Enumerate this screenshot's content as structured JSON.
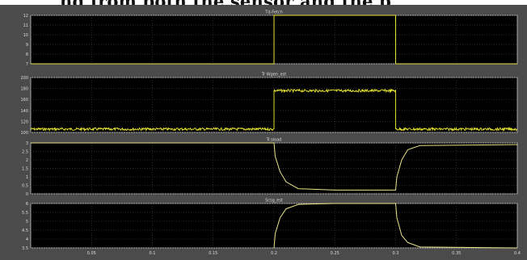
{
  "page_heading": "ng from both the sensor and the p",
  "chart_data": [
    {
      "type": "line",
      "title": "Td-Fetch",
      "xlim": [
        0,
        0.4
      ],
      "ylim": [
        7,
        12
      ],
      "yticks": [
        7,
        8,
        9,
        10,
        11,
        12
      ],
      "grid": true,
      "series": [
        {
          "color": "#e7e23c",
          "x": [
            0,
            0.2,
            0.2,
            0.3,
            0.3,
            0.4
          ],
          "y": [
            7,
            7,
            12,
            12,
            7,
            7
          ]
        }
      ]
    },
    {
      "type": "line",
      "title": "Tr Wgen_est",
      "xlim": [
        0,
        0.4
      ],
      "ylim": [
        100,
        200
      ],
      "yticks": [
        100,
        120,
        140,
        160,
        180,
        200
      ],
      "grid": true,
      "series": [
        {
          "color": "#f2ef30",
          "x": [
            0,
            0.2,
            0.2,
            0.3,
            0.3,
            0.4
          ],
          "y": [
            106,
            106,
            176,
            176,
            106,
            106
          ],
          "noise": true
        }
      ]
    },
    {
      "type": "line",
      "title": "Tr.sload",
      "xlim": [
        0,
        0.4
      ],
      "ylim": [
        0,
        3
      ],
      "yticks": [
        0,
        0.5,
        1,
        1.5,
        2,
        2.5,
        3
      ],
      "grid": true,
      "series": [
        {
          "color": "#e9e58c",
          "x": [
            0,
            0.2,
            0.201,
            0.205,
            0.21,
            0.22,
            0.25,
            0.3,
            0.301,
            0.305,
            0.31,
            0.32,
            0.4
          ],
          "y": [
            3,
            3,
            2.2,
            1.3,
            0.7,
            0.3,
            0.22,
            0.22,
            1.0,
            2.0,
            2.6,
            2.85,
            2.9
          ]
        }
      ]
    },
    {
      "type": "line",
      "title": "Scsg_est",
      "xlim": [
        0,
        0.4
      ],
      "ylim": [
        3.5,
        6
      ],
      "yticks": [
        3.5,
        4,
        4.5,
        5,
        5.5,
        6
      ],
      "xticks": [
        "0.05",
        "0.1",
        "0.15",
        "0.2",
        "0.25",
        "0.3",
        "0.35",
        "0.4"
      ],
      "grid": true,
      "series": [
        {
          "color": "#e9e58c",
          "x": [
            0.2,
            0.201,
            0.205,
            0.21,
            0.22,
            0.25,
            0.3,
            0.301,
            0.305,
            0.31,
            0.32,
            0.4
          ],
          "y": [
            3.5,
            4.3,
            5.2,
            5.7,
            5.95,
            6.0,
            6.0,
            5.2,
            4.2,
            3.8,
            3.55,
            3.5
          ]
        }
      ]
    }
  ]
}
